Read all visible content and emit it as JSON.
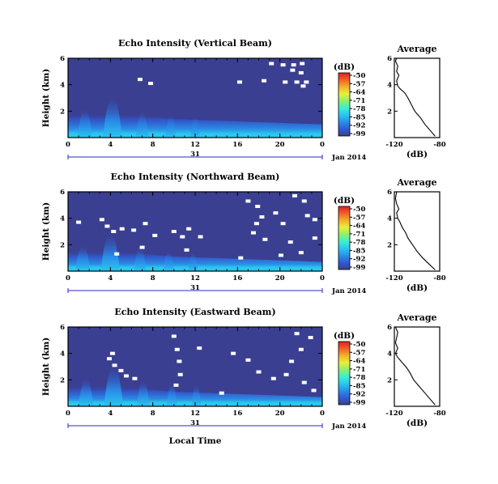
{
  "figure": {
    "date_label": "Jan 2014",
    "day_label": "31",
    "xlabel": "Local Time"
  },
  "colorbar": {
    "unit": "(dB)",
    "ticks": [
      "-50",
      "-57",
      "-64",
      "-71",
      "-78",
      "-85",
      "-92",
      "-99"
    ],
    "colors": [
      "#3b3f91",
      "#2f5bd6",
      "#2a8fe8",
      "#29c7f0",
      "#3cf0d0",
      "#8ef06a",
      "#e8f03a",
      "#f5b02a",
      "#f0602a",
      "#e02020"
    ]
  },
  "chart_data": [
    {
      "type": "heatmap",
      "title": "Echo Intensity (Vertical Beam)",
      "ylabel": "Height (km)",
      "xlim": [
        0,
        24
      ],
      "ylim": [
        0,
        6
      ],
      "xticks": [
        "0",
        "4",
        "8",
        "12",
        "16",
        "20",
        "0"
      ],
      "yticks": [
        "2",
        "4",
        "6"
      ],
      "background_db": -97,
      "surface_layer_top_km": 1.5,
      "convective_peak": {
        "time_h": 4.2,
        "top_km": 3.0
      },
      "missing_patches": [
        {
          "x": 19.2,
          "y": 5.6
        },
        {
          "x": 20.3,
          "y": 5.5
        },
        {
          "x": 21.3,
          "y": 5.5
        },
        {
          "x": 22.1,
          "y": 5.6
        },
        {
          "x": 21.2,
          "y": 5.1
        },
        {
          "x": 22.0,
          "y": 4.9
        },
        {
          "x": 20.5,
          "y": 4.2
        },
        {
          "x": 21.6,
          "y": 4.2
        },
        {
          "x": 22.5,
          "y": 4.2
        },
        {
          "x": 22.2,
          "y": 3.9
        },
        {
          "x": 18.5,
          "y": 4.3
        },
        {
          "x": 16.2,
          "y": 4.2
        },
        {
          "x": 6.8,
          "y": 4.4
        },
        {
          "x": 7.8,
          "y": 4.1
        }
      ],
      "average_profile": {
        "title": "Average",
        "xlabel": "(dB)",
        "xlim": [
          -120,
          -80
        ],
        "ylim": [
          0,
          6
        ],
        "xticks": [
          "-120",
          "-80"
        ],
        "yticks": [
          "2",
          "4",
          "6"
        ],
        "points": [
          [
            -84,
            0.1
          ],
          [
            -88,
            0.5
          ],
          [
            -93,
            1.0
          ],
          [
            -97,
            1.5
          ],
          [
            -102,
            2.0
          ],
          [
            -105,
            2.5
          ],
          [
            -108,
            3.0
          ],
          [
            -111,
            3.4
          ],
          [
            -115,
            3.7
          ],
          [
            -117,
            3.9
          ],
          [
            -118,
            4.3
          ],
          [
            -116,
            4.7
          ],
          [
            -118,
            5.0
          ],
          [
            -117,
            5.4
          ],
          [
            -119,
            5.8
          ],
          [
            -118,
            6.0
          ]
        ]
      }
    },
    {
      "type": "heatmap",
      "title": "Echo Intensity (Northward Beam)",
      "ylabel": "Height (km)",
      "xlim": [
        0,
        24
      ],
      "ylim": [
        0,
        6
      ],
      "xticks": [
        "0",
        "4",
        "8",
        "12",
        "16",
        "20",
        "0"
      ],
      "yticks": [
        "2",
        "4",
        "6"
      ],
      "background_db": -97,
      "surface_layer_top_km": 1.2,
      "convective_peak": {
        "time_h": 4.0,
        "top_km": 2.8
      },
      "missing_patches": [
        {
          "x": 1.0,
          "y": 3.7
        },
        {
          "x": 3.2,
          "y": 3.9
        },
        {
          "x": 3.7,
          "y": 3.4
        },
        {
          "x": 4.3,
          "y": 3.0
        },
        {
          "x": 5.1,
          "y": 3.2
        },
        {
          "x": 6.2,
          "y": 3.1
        },
        {
          "x": 7.3,
          "y": 3.6
        },
        {
          "x": 8.2,
          "y": 2.7
        },
        {
          "x": 10.0,
          "y": 3.0
        },
        {
          "x": 10.8,
          "y": 2.6
        },
        {
          "x": 11.4,
          "y": 3.2
        },
        {
          "x": 12.5,
          "y": 2.6
        },
        {
          "x": 4.6,
          "y": 1.3
        },
        {
          "x": 7.0,
          "y": 1.8
        },
        {
          "x": 11.2,
          "y": 1.6
        },
        {
          "x": 17.0,
          "y": 5.3
        },
        {
          "x": 17.9,
          "y": 4.9
        },
        {
          "x": 18.3,
          "y": 4.1
        },
        {
          "x": 17.8,
          "y": 3.6
        },
        {
          "x": 17.5,
          "y": 2.9
        },
        {
          "x": 18.6,
          "y": 2.4
        },
        {
          "x": 19.6,
          "y": 4.4
        },
        {
          "x": 20.3,
          "y": 3.6
        },
        {
          "x": 21.4,
          "y": 5.7
        },
        {
          "x": 22.3,
          "y": 5.3
        },
        {
          "x": 22.6,
          "y": 4.2
        },
        {
          "x": 23.3,
          "y": 3.9
        },
        {
          "x": 21.0,
          "y": 2.2
        },
        {
          "x": 20.1,
          "y": 1.2
        },
        {
          "x": 22.0,
          "y": 1.4
        },
        {
          "x": 23.3,
          "y": 2.5
        },
        {
          "x": 16.3,
          "y": 1.0
        }
      ],
      "average_profile": {
        "title": "Average",
        "xlabel": "(dB)",
        "xlim": [
          -120,
          -80
        ],
        "ylim": [
          0,
          6
        ],
        "xticks": [
          "-120",
          "-80"
        ],
        "yticks": [
          "2",
          "4",
          "6"
        ],
        "points": [
          [
            -84,
            0.1
          ],
          [
            -89,
            0.5
          ],
          [
            -95,
            1.0
          ],
          [
            -100,
            1.5
          ],
          [
            -104,
            2.0
          ],
          [
            -108,
            2.5
          ],
          [
            -110,
            2.9
          ],
          [
            -113,
            3.3
          ],
          [
            -115,
            3.7
          ],
          [
            -117,
            4.0
          ],
          [
            -118,
            4.4
          ],
          [
            -116,
            4.7
          ],
          [
            -118,
            5.1
          ],
          [
            -119,
            5.5
          ],
          [
            -118,
            6.0
          ]
        ]
      }
    },
    {
      "type": "heatmap",
      "title": "Echo Intensity (Eastward Beam)",
      "ylabel": "Height (km)",
      "xlim": [
        0,
        24
      ],
      "ylim": [
        0,
        6
      ],
      "xticks": [
        "0",
        "4",
        "8",
        "12",
        "16",
        "20",
        "0"
      ],
      "yticks": [
        "2",
        "4",
        "6"
      ],
      "background_db": -97,
      "surface_layer_top_km": 1.2,
      "convective_peak": {
        "time_h": 4.3,
        "top_km": 3.0
      },
      "missing_patches": [
        {
          "x": 3.9,
          "y": 3.6
        },
        {
          "x": 4.4,
          "y": 3.1
        },
        {
          "x": 5.0,
          "y": 2.7
        },
        {
          "x": 5.5,
          "y": 2.3
        },
        {
          "x": 4.2,
          "y": 4.0
        },
        {
          "x": 6.3,
          "y": 2.1
        },
        {
          "x": 10.0,
          "y": 5.3
        },
        {
          "x": 10.3,
          "y": 4.3
        },
        {
          "x": 10.5,
          "y": 3.4
        },
        {
          "x": 10.6,
          "y": 2.4
        },
        {
          "x": 10.2,
          "y": 1.6
        },
        {
          "x": 12.4,
          "y": 4.4
        },
        {
          "x": 15.6,
          "y": 4.0
        },
        {
          "x": 17.0,
          "y": 3.5
        },
        {
          "x": 18.0,
          "y": 2.6
        },
        {
          "x": 19.4,
          "y": 2.1
        },
        {
          "x": 20.6,
          "y": 2.4
        },
        {
          "x": 21.1,
          "y": 3.4
        },
        {
          "x": 22.0,
          "y": 4.3
        },
        {
          "x": 22.9,
          "y": 5.2
        },
        {
          "x": 21.6,
          "y": 5.5
        },
        {
          "x": 22.3,
          "y": 1.8
        },
        {
          "x": 23.2,
          "y": 1.2
        },
        {
          "x": 14.5,
          "y": 1.0
        }
      ],
      "average_profile": {
        "title": "Average",
        "xlabel": "(dB)",
        "xlim": [
          -120,
          -80
        ],
        "ylim": [
          0,
          6
        ],
        "xticks": [
          "-120",
          "-80"
        ],
        "yticks": [
          "2",
          "4",
          "6"
        ],
        "points": [
          [
            -84,
            0.1
          ],
          [
            -88,
            0.5
          ],
          [
            -93,
            1.0
          ],
          [
            -98,
            1.5
          ],
          [
            -103,
            2.0
          ],
          [
            -106,
            2.5
          ],
          [
            -109,
            2.9
          ],
          [
            -113,
            3.3
          ],
          [
            -117,
            3.7
          ],
          [
            -119,
            4.0
          ],
          [
            -117,
            4.4
          ],
          [
            -119,
            4.8
          ],
          [
            -118,
            5.2
          ],
          [
            -117,
            5.6
          ],
          [
            -119,
            6.0
          ]
        ]
      }
    }
  ]
}
